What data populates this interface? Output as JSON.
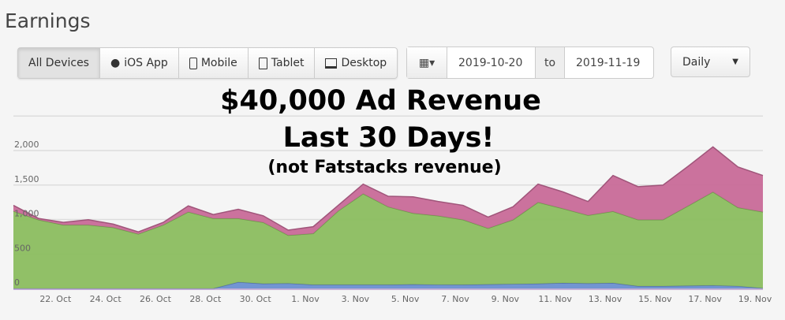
{
  "header": {
    "title": "Earnings"
  },
  "device_filter": {
    "buttons": [
      {
        "label": "All Devices",
        "icon": "",
        "active": true
      },
      {
        "label": "iOS App",
        "icon": "apple-icon"
      },
      {
        "label": "Mobile",
        "icon": "mobile-icon"
      },
      {
        "label": "Tablet",
        "icon": "tablet-icon"
      },
      {
        "label": "Desktop",
        "icon": "desktop-icon"
      }
    ]
  },
  "date_range": {
    "icon": "calendar-icon",
    "from": "2019-10-20",
    "separator": "to",
    "to": "2019-11-19"
  },
  "interval": {
    "selected": "Daily"
  },
  "overlay": {
    "line1": "$40,000 Ad Revenue",
    "line2": "Last 30 Days!",
    "line3": "(not Fatstacks revenue)"
  },
  "chart_data": {
    "type": "area",
    "stacked": true,
    "grid": true,
    "ylim": [
      0,
      2500
    ],
    "y_ticks": [
      "0",
      "500",
      "1,000",
      "1,500",
      "2,000"
    ],
    "y_tick_values": [
      0,
      500,
      1000,
      1500,
      2000
    ],
    "x": [
      "20. Oct",
      "21. Oct",
      "22. Oct",
      "23. Oct",
      "24. Oct",
      "25. Oct",
      "26. Oct",
      "27. Oct",
      "28. Oct",
      "29. Oct",
      "30. Oct",
      "31. Oct",
      "1. Nov",
      "2. Nov",
      "3. Nov",
      "4. Nov",
      "5. Nov",
      "6. Nov",
      "7. Nov",
      "8. Nov",
      "9. Nov",
      "10. Nov",
      "11. Nov",
      "12. Nov",
      "13. Nov",
      "14. Nov",
      "15. Nov",
      "16. Nov",
      "17. Nov",
      "18. Nov",
      "19. Nov"
    ],
    "x_tick_labels": [
      "22. Oct",
      "24. Oct",
      "26. Oct",
      "28. Oct",
      "30. Oct",
      "1. Nov",
      "3. Nov",
      "5. Nov",
      "7. Nov",
      "9. Nov",
      "11. Nov",
      "13. Nov",
      "15. Nov",
      "17. Nov",
      "19. Nov"
    ],
    "series": [
      {
        "color": "#6a8fd0",
        "values": [
          0,
          0,
          0,
          0,
          0,
          0,
          0,
          0,
          0,
          93,
          70,
          75,
          55,
          55,
          55,
          55,
          60,
          55,
          55,
          60,
          65,
          70,
          80,
          75,
          80,
          35,
          35,
          40,
          45,
          35,
          5
        ]
      },
      {
        "color": "#8bbd5f",
        "values": [
          1122,
          997,
          922,
          922,
          884,
          790,
          922,
          1110,
          1016,
          923,
          889,
          696,
          742,
          1070,
          1319,
          1130,
          1031,
          999,
          942,
          813,
          932,
          1180,
          1079,
          986,
          1038,
          962,
          962,
          1157,
          1355,
          1139,
          1105
        ]
      },
      {
        "color": "#c86a98",
        "values": [
          83,
          19,
          37,
          75,
          49,
          30,
          37,
          87,
          56,
          132,
          95,
          75,
          99,
          80,
          139,
          152,
          238,
          207,
          208,
          162,
          188,
          263,
          241,
          200,
          520,
          479,
          502,
          573,
          653,
          588,
          528
        ]
      }
    ]
  }
}
